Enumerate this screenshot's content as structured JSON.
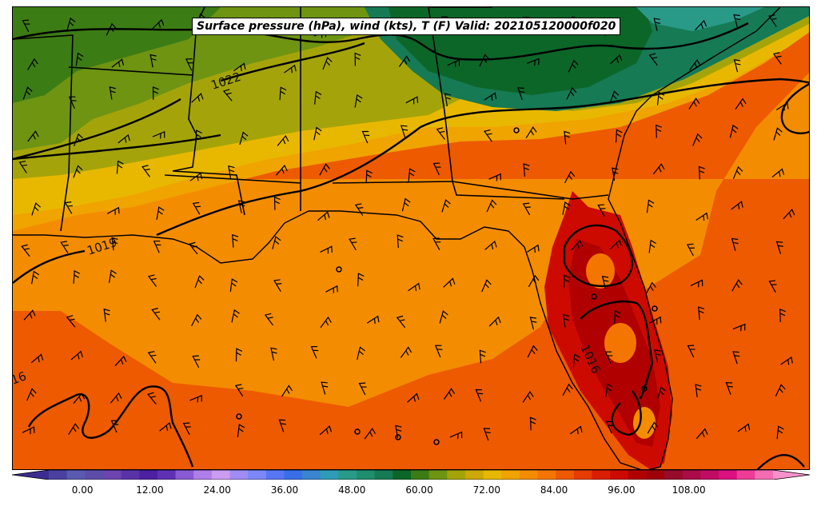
{
  "map": {
    "title": "Surface pressure (hPa), wind (kts), T (F) Valid: 202105120000f020",
    "isobar_labels": [
      "1022",
      "1019",
      "1016",
      "16"
    ],
    "colorbar": {
      "tick_labels": [
        "0.00",
        "12.00",
        "24.00",
        "36.00",
        "48.00",
        "60.00",
        "72.00",
        "84.00",
        "96.00",
        "108.00"
      ],
      "min": -6,
      "max": 123,
      "extend": "both",
      "colors": [
        "#3c2c90",
        "#4a40a0",
        "#5a5ab0",
        "#5c4ea8",
        "#6e44b0",
        "#5a32a8",
        "#4c20a0",
        "#6030b4",
        "#8a5ad4",
        "#b07ee8",
        "#cc9cf0",
        "#a08cf4",
        "#7c88f8",
        "#5676f4",
        "#3a6ee8",
        "#3a84d0",
        "#2e9cb8",
        "#2a9a88",
        "#1e8e6c",
        "#167a54",
        "#0c6628",
        "#3c7c14",
        "#6e9412",
        "#a4a40a",
        "#cca808",
        "#e8b800",
        "#f0a400",
        "#f48c00",
        "#f47600",
        "#ee5a00",
        "#e63c00",
        "#dc1e00",
        "#cc0a00",
        "#b00000",
        "#a0000a",
        "#960c2a",
        "#aa0c48",
        "#c00c64",
        "#dc1080",
        "#ec3c98",
        "#f46cb2",
        "#f890cc"
      ]
    }
  }
}
